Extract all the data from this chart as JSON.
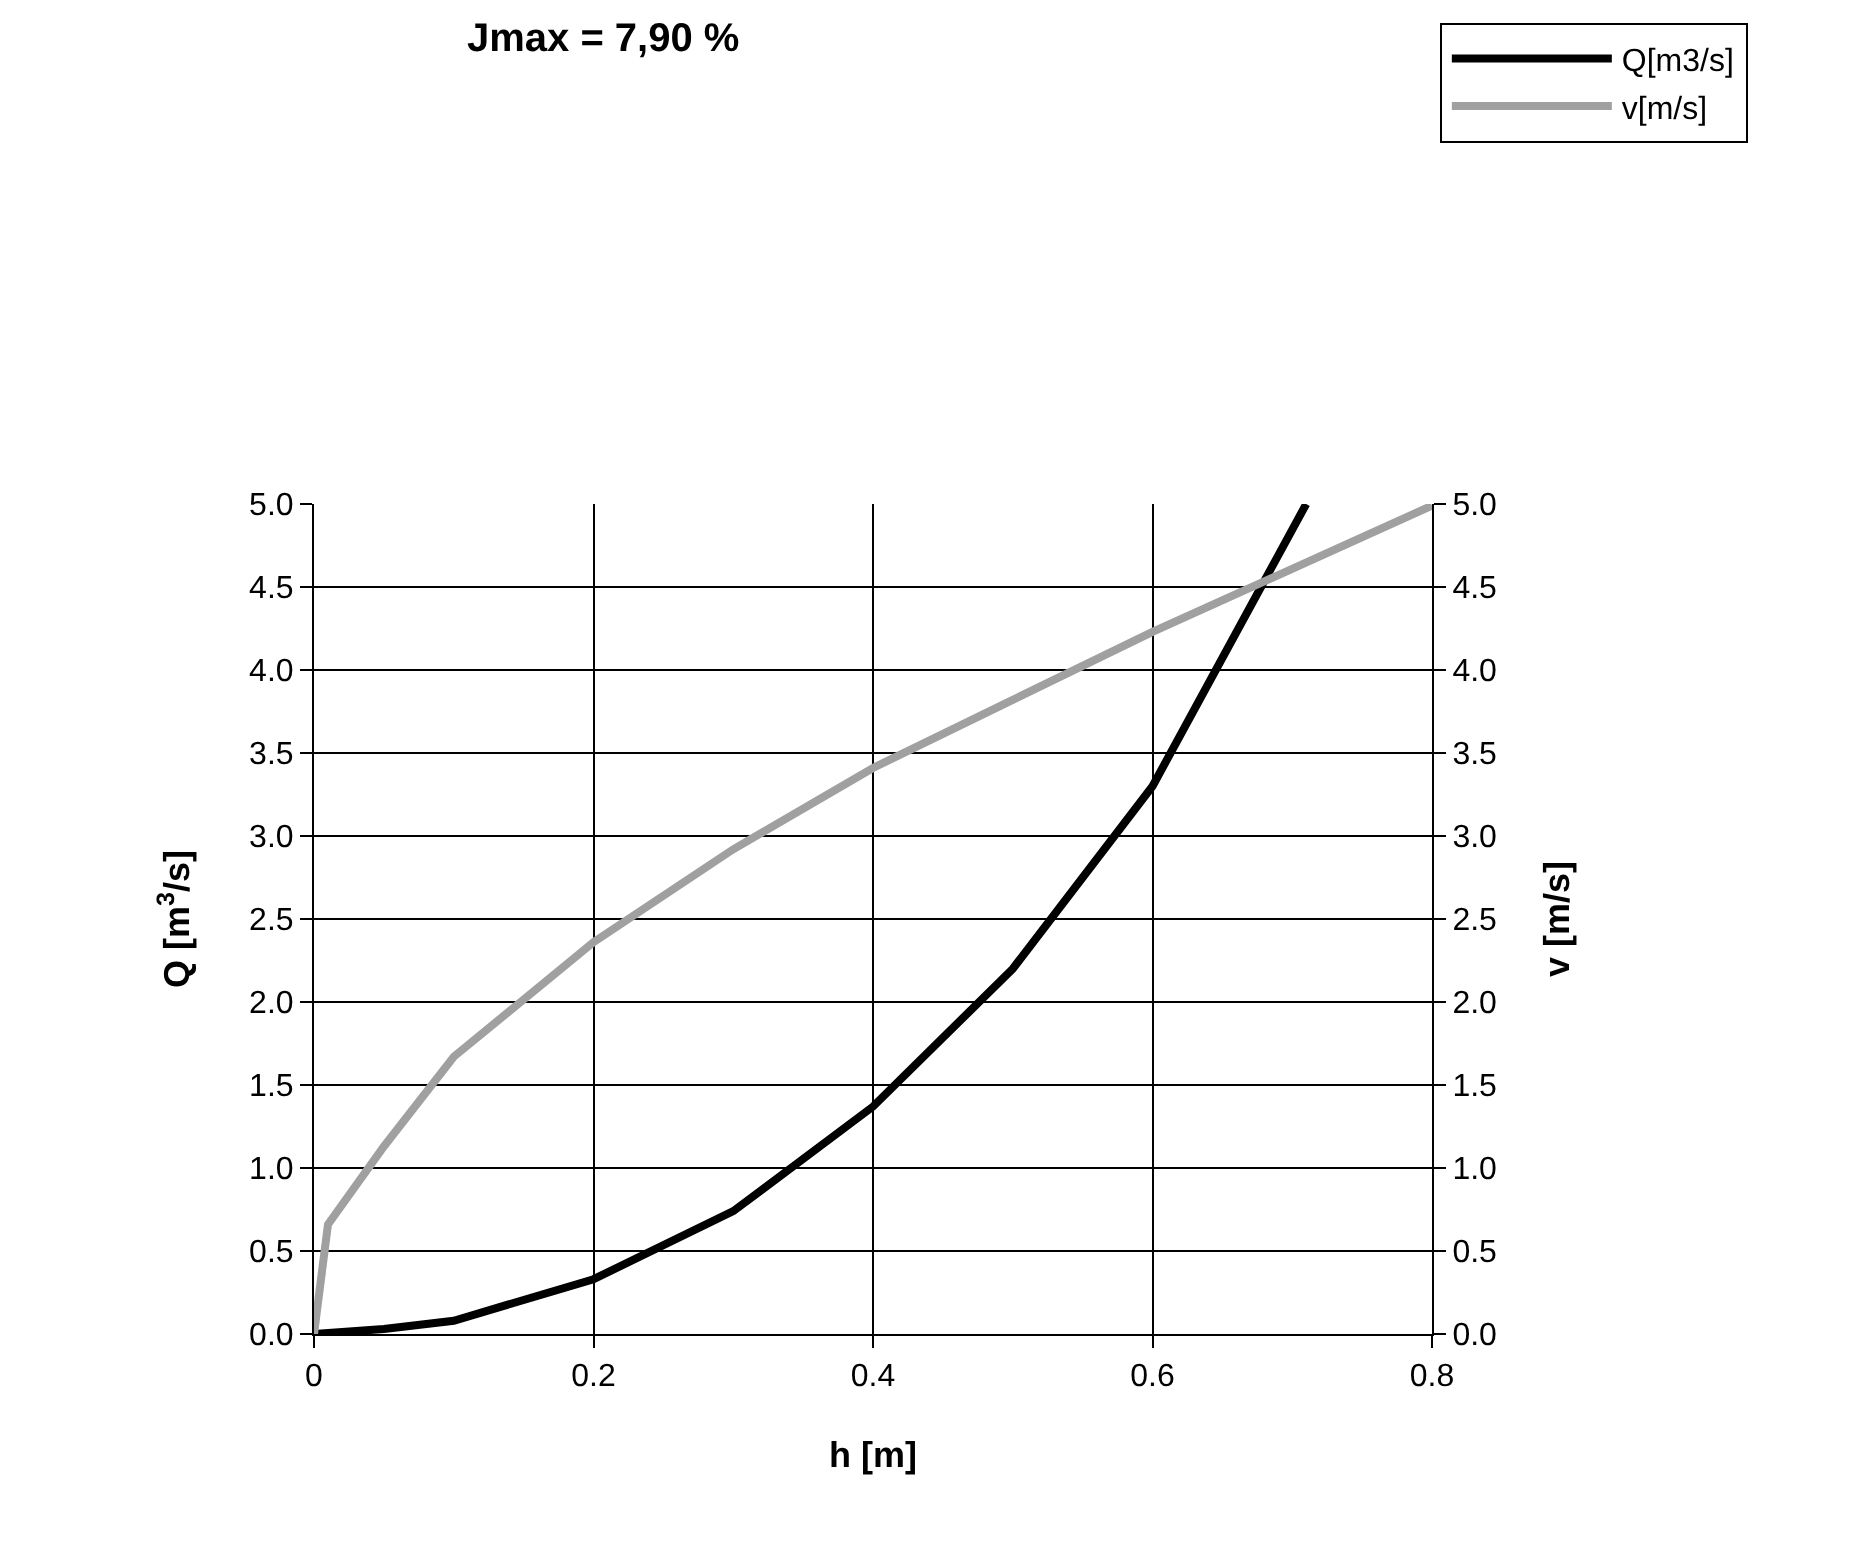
{
  "chart_data": {
    "type": "line",
    "title": "Jmax = 7,90 %",
    "xlabel": "h [m]",
    "ylabel": "Q [m$^{3}$/s]",
    "y2label": "v [m/s]",
    "series": [
      {
        "name": "Q[m3/s]",
        "color": "#000000",
        "x": [
          0,
          0.05,
          0.1,
          0.2,
          0.3,
          0.4,
          0.5,
          0.6,
          0.71
        ],
        "values": [
          0,
          0.03,
          0.08,
          0.33,
          0.74,
          1.37,
          2.2,
          3.3,
          5.0
        ]
      },
      {
        "name": "v[m/s]",
        "color": "#a0a0a0",
        "axis": "y2",
        "x": [
          0,
          0.01,
          0.05,
          0.1,
          0.2,
          0.3,
          0.4,
          0.5,
          0.6,
          0.8
        ],
        "values": [
          0,
          0.66,
          1.13,
          1.67,
          2.36,
          2.92,
          3.41,
          3.82,
          4.23,
          4.99
        ]
      }
    ],
    "xlim": [
      0,
      0.8
    ],
    "xticks": [
      0,
      0.2,
      0.4,
      0.6,
      0.8
    ],
    "ylim": [
      0,
      5
    ],
    "yticks": [
      {
        "value": 0,
        "label": "0.0"
      },
      {
        "value": 0.5,
        "label": "0.5"
      },
      {
        "value": 1,
        "label": "1.0"
      },
      {
        "value": 1.5,
        "label": "1.5"
      },
      {
        "value": 2,
        "label": "2.0"
      },
      {
        "value": 2.5,
        "label": "2.5"
      },
      {
        "value": 3,
        "label": "3.0"
      },
      {
        "value": 3.5,
        "label": "3.5"
      },
      {
        "value": 4,
        "label": "4.0"
      },
      {
        "value": 4.5,
        "label": "4.5"
      },
      {
        "value": 5,
        "label": "5.0"
      }
    ],
    "y2lim": [
      0,
      5
    ],
    "y2ticks": [
      {
        "value": 0,
        "label": "0.0"
      },
      {
        "value": 0.5,
        "label": "0.5"
      },
      {
        "value": 1,
        "label": "1.0"
      },
      {
        "value": 1.5,
        "label": "1.5"
      },
      {
        "value": 2,
        "label": "2.0"
      },
      {
        "value": 2.5,
        "label": "2.5"
      },
      {
        "value": 3,
        "label": "3.0"
      },
      {
        "value": 3.5,
        "label": "3.5"
      },
      {
        "value": 4,
        "label": "4.0"
      },
      {
        "value": 4.5,
        "label": "4.5"
      },
      {
        "value": 5,
        "label": "5.0"
      }
    ],
    "grid": true,
    "legend": "top right",
    "marker": "none",
    "line_style": "solid"
  }
}
